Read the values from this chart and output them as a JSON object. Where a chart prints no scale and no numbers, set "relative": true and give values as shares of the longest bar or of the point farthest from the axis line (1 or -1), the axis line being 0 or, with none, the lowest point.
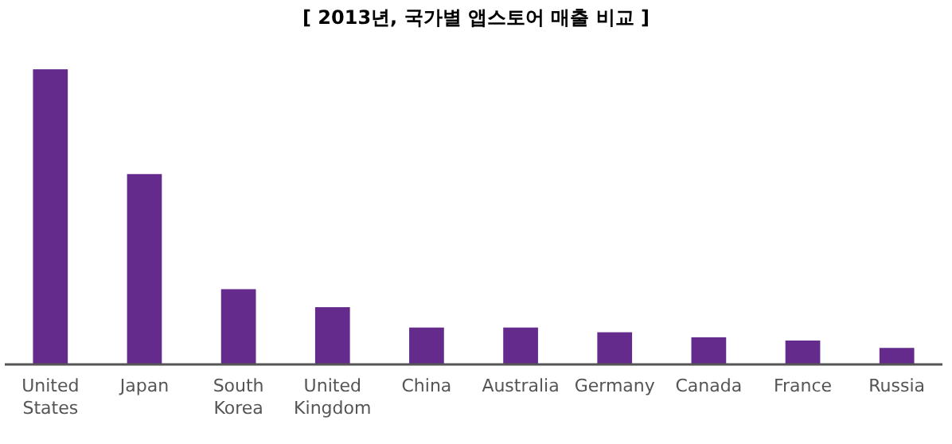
{
  "chart_data": {
    "type": "bar",
    "title": "[ 2013년, 국가별 앱스토어 매출 비교 ]",
    "relative": true,
    "categories": [
      "United States",
      "Japan",
      "South Korea",
      "United Kingdom",
      "China",
      "Australia",
      "Germany",
      "Canada",
      "France",
      "Russia"
    ],
    "values": [
      1,
      0.645,
      0.255,
      0.194,
      0.125,
      0.125,
      0.109,
      0.092,
      0.081,
      0.056
    ],
    "color": "#652b8c"
  }
}
